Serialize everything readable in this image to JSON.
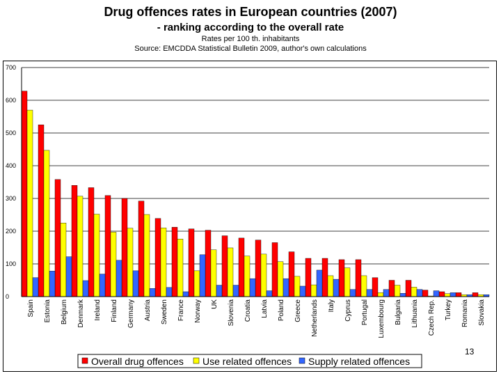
{
  "header": {
    "title": "Drug offences rates in European countries (2007)",
    "subtitle": "- ranking according to the overall rate",
    "units_note": "Rates per 100 th. inhabitants",
    "source_note": "Source: EMCDDA Statistical Bulletin 2009, author's own calculations"
  },
  "page_number": "13",
  "chart_data": {
    "type": "bar",
    "title": "Drug offences rates in European countries (2007)",
    "subtitle": "- ranking according to the overall rate",
    "xlabel": "",
    "ylabel": "",
    "ylim": [
      0,
      700
    ],
    "yticks": [
      0,
      100,
      200,
      300,
      400,
      500,
      600,
      700
    ],
    "grid": true,
    "legend_position": "bottom",
    "categories": [
      "Spain",
      "Estonia",
      "Belgium",
      "Denmark",
      "Ireland",
      "Finland",
      "Germany",
      "Austria",
      "Sweden",
      "France",
      "Norway",
      "UK",
      "Slovenia",
      "Croatia",
      "Latvia",
      "Poland",
      "Greece",
      "Netherlands",
      "Italy",
      "Cyprus",
      "Portugal",
      "Luxembourg",
      "Bulgaria",
      "Lithuania",
      "Czech Rep.",
      "Turkey",
      "Romania",
      "Slovakia"
    ],
    "series": [
      {
        "name": "Overall drug offences",
        "color": "#ff0000",
        "values": [
          628,
          525,
          358,
          340,
          333,
          309,
          300,
          292,
          239,
          212,
          207,
          203,
          186,
          179,
          173,
          165,
          137,
          117,
          117,
          113,
          113,
          58,
          50,
          50,
          20,
          15,
          12,
          12
        ]
      },
      {
        "name": "Use related offences",
        "color": "#ffff00",
        "values": [
          570,
          447,
          225,
          307,
          252,
          197,
          209,
          251,
          210,
          176,
          79,
          143,
          149,
          124,
          130,
          107,
          62,
          36,
          64,
          88,
          64,
          12,
          35,
          29,
          2,
          9,
          6,
          6
        ]
      },
      {
        "name": "Supply related offences",
        "color": "#3366ff",
        "values": [
          58,
          78,
          122,
          49,
          69,
          111,
          79,
          25,
          28,
          15,
          128,
          35,
          35,
          55,
          18,
          55,
          32,
          81,
          53,
          22,
          22,
          22,
          10,
          22,
          18,
          12,
          6,
          6
        ]
      }
    ]
  }
}
